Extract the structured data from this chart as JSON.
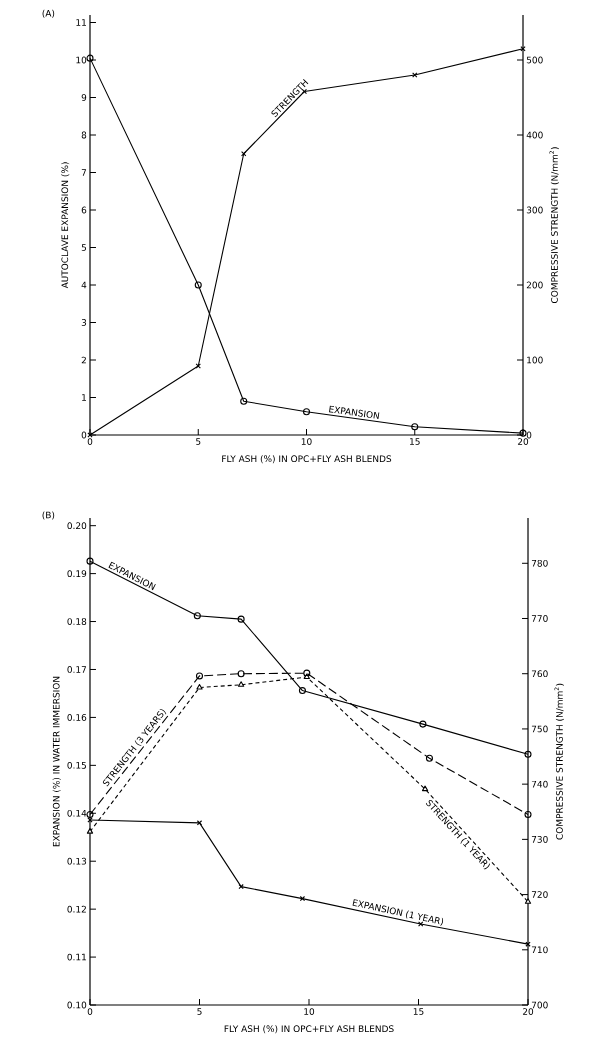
{
  "chart_data": [
    {
      "type": "line",
      "title": "(A)",
      "xlabel": "FLY ASH (%) IN OPC+FLY ASH BLENDS",
      "ylabel": "AUTOCLAVE EXPANSION (%)",
      "y2label": "COMPRESSIVE STRENGTH (N/mm$^{2}$)",
      "xlim": [
        0,
        20
      ],
      "xticks": [
        0,
        5,
        10,
        15,
        20
      ],
      "ylim": [
        0,
        11.2
      ],
      "yticks": [
        0,
        1,
        2,
        3,
        4,
        5,
        6,
        7,
        8,
        9,
        10,
        11
      ],
      "y2lim": [
        0,
        560
      ],
      "y2ticks": [
        0,
        100,
        200,
        300,
        400,
        500
      ],
      "series": [
        {
          "name": "EXPANSION",
          "color": "#000000",
          "marker": "circle",
          "line_style": "solid",
          "x": [
            0,
            5,
            7.1,
            10,
            15,
            20
          ],
          "values": [
            10.05,
            4.0,
            0.9,
            0.62,
            0.22,
            0.05
          ]
        },
        {
          "name": "STRENGTH",
          "color": "#000000",
          "marker": "cross",
          "line_style": "solid",
          "axis": "y2",
          "x": [
            0,
            5,
            7.1,
            9.9,
            15,
            20
          ],
          "values": [
            0,
            92,
            375,
            458,
            480,
            515
          ]
        }
      ]
    },
    {
      "type": "line",
      "title": "(B)",
      "xlabel": "FLY ASH (%) IN OPC+FLY ASH BLENDS",
      "ylabel": "EXPANSION (%) IN WATER IMMERSION",
      "y2label": "COMPRESSIVE STRENGTH (N/mm$^{2}$)",
      "xlim": [
        0,
        20
      ],
      "xticks": [
        0,
        5,
        10,
        15,
        20
      ],
      "ylim": [
        0.1,
        0.2016
      ],
      "yticks": [
        {
          "value": 0.1,
          "label": "0.10"
        },
        0.11,
        0.12,
        0.13,
        0.14,
        0.15,
        0.16,
        0.17,
        0.18,
        0.19,
        {
          "value": 0.2,
          "label": "0.20"
        }
      ],
      "y2lim": [
        700,
        788.2
      ],
      "y2ticks": [
        700,
        710,
        720,
        730,
        740,
        750,
        760,
        770,
        780
      ],
      "series": [
        {
          "name": "EXPANSION",
          "color": "#000000",
          "marker": "circle",
          "line_style": "solid",
          "x": [
            0,
            4.9,
            6.9,
            9.7,
            15.2,
            20
          ],
          "values": [
            0.1926,
            0.1812,
            0.1805,
            0.1656,
            0.1586,
            0.1523
          ]
        },
        {
          "name": "EXPANSION (1 YEAR)",
          "color": "#000000",
          "marker": "cross",
          "line_style": "solid",
          "x": [
            0,
            5,
            6.9,
            9.7,
            15.1,
            20
          ],
          "values": [
            0.1386,
            0.138,
            0.1247,
            0.1222,
            0.1169,
            0.1127
          ]
        },
        {
          "name": "STRENGTH (3 YEARS)",
          "color": "#000000",
          "marker": "circle",
          "line_style": "dashed",
          "axis": "y2",
          "x": [
            0,
            5,
            6.9,
            9.9,
            15.5,
            20
          ],
          "values": [
            734.5,
            759.6,
            760.0,
            760.1,
            744.7,
            734.5
          ]
        },
        {
          "name": "STRENGTH (1 YEAR)",
          "color": "#000000",
          "marker": "triangle",
          "line_style": "dotted",
          "axis": "y2",
          "x": [
            0,
            5,
            6.9,
            9.9,
            15.3,
            20
          ],
          "values": [
            731.4,
            757.5,
            758.0,
            759.4,
            739.1,
            718.7
          ]
        }
      ]
    }
  ]
}
